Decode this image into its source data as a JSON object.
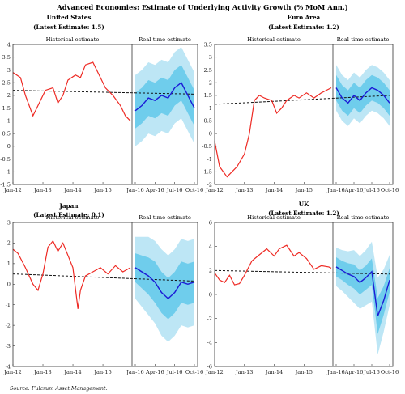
{
  "figure_title": "Advanced Economies: Estimate of Underlying Activity Growth (% MoM Ann.)",
  "source": "Source: Fulcrum Asset Management.",
  "colors": {
    "historical": "#ee2a24",
    "realtime": "#1b1bd6",
    "trend": "#111111",
    "band_inner": "#6fcdec",
    "band_outer": "#bde6f5",
    "frame": "#333333"
  },
  "chart_data": [
    {
      "type": "line",
      "title": "United States",
      "subtitle": "(Latest Estimate: 1.5)",
      "left_panel_label": "Historical estimate",
      "right_panel_label": "Real-time estimate",
      "ylim": [
        -1.5,
        4
      ],
      "yticks": [
        -1.5,
        -1,
        -0.5,
        0,
        0.5,
        1,
        1.5,
        2,
        2.5,
        3,
        3.5,
        4
      ],
      "ytick_labels": [
        "-1.5",
        "-1",
        "-0.5",
        "0",
        "0.5",
        "1",
        "1.5",
        "2",
        "2.5",
        "3",
        "3.5",
        "4"
      ],
      "x_hist_range": [
        "2012-01",
        "2015-12"
      ],
      "x_hist_ticks": [
        "Jan-12",
        "Jan-13",
        "Jan-14",
        "Jan-15"
      ],
      "x_rt_range": [
        "2016-01",
        "2016-10"
      ],
      "x_rt_ticks": [
        "Jan-16",
        "Apr-16",
        "Jul-16",
        "Oct-16"
      ],
      "series": [
        {
          "name": "",
          "kind": "historical",
          "x": [
            "2012-01",
            "2012-04",
            "2012-06",
            "2012-09",
            "2012-11",
            "2013-02",
            "2013-05",
            "2013-07",
            "2013-09",
            "2013-11",
            "2014-02",
            "2014-04",
            "2014-06",
            "2014-09",
            "2014-11",
            "2015-02",
            "2015-05",
            "2015-08",
            "2015-10",
            "2015-12"
          ],
          "values": [
            2.9,
            2.7,
            2.0,
            1.2,
            1.6,
            2.2,
            2.3,
            1.7,
            2.0,
            2.6,
            2.8,
            2.7,
            3.2,
            3.3,
            2.9,
            2.3,
            2.0,
            1.6,
            1.2,
            1.0
          ]
        },
        {
          "name": "",
          "kind": "trend",
          "x": [
            "2012-01",
            "2016-10"
          ],
          "values": [
            2.2,
            2.05
          ]
        },
        {
          "name": "",
          "kind": "realtime",
          "x": [
            "2016-01",
            "2016-02",
            "2016-03",
            "2016-04",
            "2016-05",
            "2016-06",
            "2016-07",
            "2016-08",
            "2016-09",
            "2016-10"
          ],
          "values": [
            1.4,
            1.6,
            1.9,
            1.8,
            2.0,
            1.9,
            2.3,
            2.5,
            2.0,
            1.5
          ],
          "band_inner": [
            0.7,
            0.7,
            0.7,
            0.7,
            0.7,
            0.7,
            0.7,
            0.7,
            0.7,
            0.7
          ],
          "band_outer": [
            1.4,
            1.4,
            1.4,
            1.4,
            1.4,
            1.4,
            1.4,
            1.4,
            1.4,
            1.4
          ]
        }
      ]
    },
    {
      "type": "line",
      "title": "Euro Area",
      "subtitle": "(Latest Estimate: 1.2)",
      "left_panel_label": "Historical estimate",
      "right_panel_label": "Real-time estimate",
      "ylim": [
        -2,
        3.5
      ],
      "yticks": [
        -2,
        -1.5,
        -1,
        -0.5,
        0,
        0.5,
        1,
        1.5,
        2,
        2.5,
        3,
        3.5
      ],
      "ytick_labels": [
        "-2",
        "-1.5",
        "-1",
        "-0.5",
        "0",
        "0.5",
        "1",
        "1.5",
        "2",
        "2.5",
        "3",
        "3.5"
      ],
      "x_hist_range": [
        "2012-01",
        "2015-12"
      ],
      "x_hist_ticks": [
        "Jan-12",
        "Jan-13",
        "Jan-14",
        "Jan-15"
      ],
      "x_rt_range": [
        "2016-01",
        "2016-10"
      ],
      "x_rt_ticks": [
        "Jan-16",
        "Apr-16",
        "Jul-16",
        "Oct-16"
      ],
      "series": [
        {
          "name": "",
          "kind": "historical",
          "x": [
            "2012-01",
            "2012-03",
            "2012-06",
            "2012-08",
            "2012-10",
            "2013-01",
            "2013-03",
            "2013-05",
            "2013-07",
            "2013-09",
            "2013-12",
            "2014-02",
            "2014-04",
            "2014-06",
            "2014-09",
            "2014-11",
            "2015-02",
            "2015-05",
            "2015-08",
            "2015-10",
            "2015-12"
          ],
          "values": [
            -0.3,
            -1.3,
            -1.7,
            -1.5,
            -1.3,
            -0.8,
            0.0,
            1.3,
            1.5,
            1.4,
            1.3,
            0.8,
            1.0,
            1.3,
            1.5,
            1.4,
            1.6,
            1.4,
            1.6,
            1.7,
            1.8
          ]
        },
        {
          "name": "",
          "kind": "trend",
          "x": [
            "2012-01",
            "2016-10"
          ],
          "values": [
            1.15,
            1.5
          ]
        },
        {
          "name": "",
          "kind": "realtime",
          "x": [
            "2016-01",
            "2016-02",
            "2016-03",
            "2016-04",
            "2016-05",
            "2016-06",
            "2016-07",
            "2016-08",
            "2016-09",
            "2016-10"
          ],
          "values": [
            1.8,
            1.4,
            1.2,
            1.5,
            1.3,
            1.6,
            1.8,
            1.7,
            1.5,
            1.2
          ],
          "band_inner": [
            0.5,
            0.5,
            0.5,
            0.5,
            0.5,
            0.5,
            0.5,
            0.5,
            0.5,
            0.5
          ],
          "band_outer": [
            0.9,
            0.9,
            0.9,
            0.9,
            0.9,
            0.9,
            0.9,
            0.9,
            0.9,
            0.9
          ]
        }
      ]
    },
    {
      "type": "line",
      "title": "Japan",
      "subtitle": "(Latest Estimate: 0.1)",
      "left_panel_label": "Historical estimate",
      "right_panel_label": "Real-time estimate",
      "ylim": [
        -4,
        3
      ],
      "yticks": [
        -4,
        -3,
        -2,
        -1,
        0,
        1,
        2,
        3
      ],
      "ytick_labels": [
        "-4",
        "-3",
        "-2",
        "-1",
        "0",
        "1",
        "2",
        "3"
      ],
      "x_hist_range": [
        "2012-01",
        "2015-12"
      ],
      "x_hist_ticks": [
        "Jan-12",
        "Jan-13",
        "Jan-14",
        "Jan-15"
      ],
      "x_rt_range": [
        "2016-01",
        "2016-10"
      ],
      "x_rt_ticks": [
        "Jan-16",
        "Apr-16",
        "Jul-16",
        "Oct-16"
      ],
      "series": [
        {
          "name": "",
          "kind": "historical",
          "x": [
            "2012-01",
            "2012-03",
            "2012-06",
            "2012-09",
            "2012-11",
            "2013-01",
            "2013-03",
            "2013-05",
            "2013-07",
            "2013-09",
            "2013-11",
            "2014-01",
            "2014-03",
            "2014-04",
            "2014-06",
            "2014-09",
            "2014-12",
            "2015-03",
            "2015-06",
            "2015-09",
            "2015-12"
          ],
          "values": [
            1.7,
            1.5,
            0.8,
            0.0,
            -0.3,
            0.5,
            1.8,
            2.1,
            1.6,
            2.0,
            1.4,
            0.8,
            -1.2,
            -0.3,
            0.4,
            0.6,
            0.8,
            0.5,
            0.9,
            0.6,
            0.8
          ]
        },
        {
          "name": "",
          "kind": "trend",
          "x": [
            "2012-01",
            "2016-10"
          ],
          "values": [
            0.5,
            0.15
          ]
        },
        {
          "name": "",
          "kind": "realtime",
          "x": [
            "2016-01",
            "2016-02",
            "2016-03",
            "2016-04",
            "2016-05",
            "2016-06",
            "2016-07",
            "2016-08",
            "2016-09",
            "2016-10"
          ],
          "values": [
            0.8,
            0.6,
            0.4,
            0.1,
            -0.4,
            -0.7,
            -0.4,
            0.1,
            0.0,
            0.1
          ],
          "band_inner": [
            0.7,
            0.8,
            0.9,
            1.0,
            1.0,
            1.0,
            1.0,
            1.0,
            1.0,
            1.0
          ],
          "band_outer": [
            1.5,
            1.7,
            1.9,
            2.0,
            2.1,
            2.1,
            2.1,
            2.1,
            2.1,
            2.1
          ]
        }
      ]
    },
    {
      "type": "line",
      "title": "UK",
      "subtitle": "(Latest Estimate: 1.2)",
      "left_panel_label": "Historical estimate",
      "right_panel_label": "Real-time estimate",
      "ylim": [
        -6,
        6
      ],
      "yticks": [
        -6,
        -4,
        -2,
        0,
        2,
        4,
        6
      ],
      "ytick_labels": [
        "-6",
        "-4",
        "-2",
        "0",
        "2",
        "4",
        "6"
      ],
      "x_hist_range": [
        "2012-01",
        "2015-12"
      ],
      "x_hist_ticks": [
        "Jan-12",
        "Jan-13",
        "Jan-14",
        "Jan-15"
      ],
      "x_rt_range": [
        "2016-01",
        "2016-10"
      ],
      "x_rt_ticks": [
        "Jan-16",
        "Apr-16",
        "Jul-16",
        "Oct-16"
      ],
      "series": [
        {
          "name": "",
          "kind": "historical",
          "x": [
            "2012-01",
            "2012-03",
            "2012-05",
            "2012-07",
            "2012-09",
            "2012-11",
            "2013-01",
            "2013-04",
            "2013-07",
            "2013-10",
            "2014-01",
            "2014-03",
            "2014-06",
            "2014-09",
            "2014-11",
            "2015-02",
            "2015-05",
            "2015-08",
            "2015-11",
            "2015-12"
          ],
          "values": [
            1.8,
            1.2,
            1.0,
            1.6,
            0.8,
            0.9,
            1.6,
            2.8,
            3.3,
            3.8,
            3.2,
            3.8,
            4.1,
            3.2,
            3.5,
            3.0,
            2.1,
            2.4,
            2.3,
            2.2
          ]
        },
        {
          "name": "",
          "kind": "trend",
          "x": [
            "2012-01",
            "2016-10"
          ],
          "values": [
            2.0,
            1.7
          ]
        },
        {
          "name": "",
          "kind": "realtime",
          "x": [
            "2016-01",
            "2016-02",
            "2016-03",
            "2016-04",
            "2016-05",
            "2016-06",
            "2016-07",
            "2016-08",
            "2016-09",
            "2016-10"
          ],
          "values": [
            2.3,
            2.0,
            1.7,
            1.5,
            1.0,
            1.4,
            1.9,
            -1.8,
            -0.5,
            1.2
          ],
          "band_inner": [
            0.8,
            0.8,
            0.9,
            1.0,
            1.0,
            1.0,
            1.1,
            1.5,
            1.2,
            1.0
          ],
          "band_outer": [
            1.6,
            1.7,
            1.9,
            2.2,
            2.2,
            2.3,
            2.5,
            3.2,
            2.6,
            2.1
          ]
        }
      ]
    }
  ]
}
